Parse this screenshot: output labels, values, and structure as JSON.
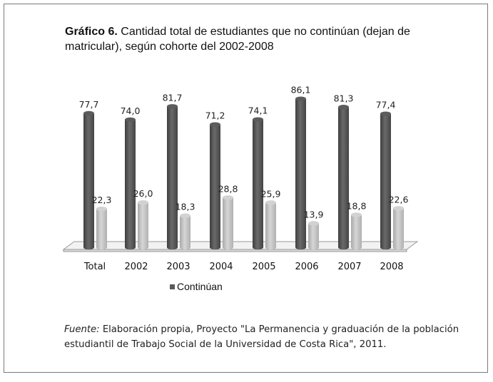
{
  "figure": {
    "label": "Gráfico 6.",
    "title": "Cantidad total de estudiantes que no continúan (dejan de matricular), según cohorte del 2002-2008",
    "source_label": "Fuente:",
    "source_text": "Elaboración propia, Proyecto \"La Permanencia y graduación de la población estudiantil de Trabajo Social de la Universidad de Costa Rica\", 2011."
  },
  "chart_data": {
    "type": "bar",
    "title": "Cantidad total de estudiantes que no continúan (dejan de matricular), según cohorte del 2002-2008",
    "categories": [
      "Total",
      "2002",
      "2003",
      "2004",
      "2005",
      "2006",
      "2007",
      "2008"
    ],
    "series": [
      {
        "name": "Continúan",
        "color": "#595959",
        "values": [
          77.7,
          74.0,
          81.7,
          71.2,
          74.1,
          86.1,
          81.3,
          77.4
        ],
        "labels": [
          "77,7",
          "74,0",
          "81,7",
          "71,2",
          "74,1",
          "86,1",
          "81,3",
          "77,4"
        ]
      },
      {
        "color": "#bfbfbf",
        "values": [
          22.3,
          26.0,
          18.3,
          28.8,
          25.9,
          13.9,
          18.8,
          22.6
        ],
        "labels": [
          "22,3",
          "26,0",
          "18,3",
          "28,8",
          "25,9",
          "13,9",
          "18,8",
          "22,6"
        ]
      }
    ],
    "ylim": [
      0,
      100
    ],
    "grid": false,
    "legend_position": "bottom-left"
  }
}
